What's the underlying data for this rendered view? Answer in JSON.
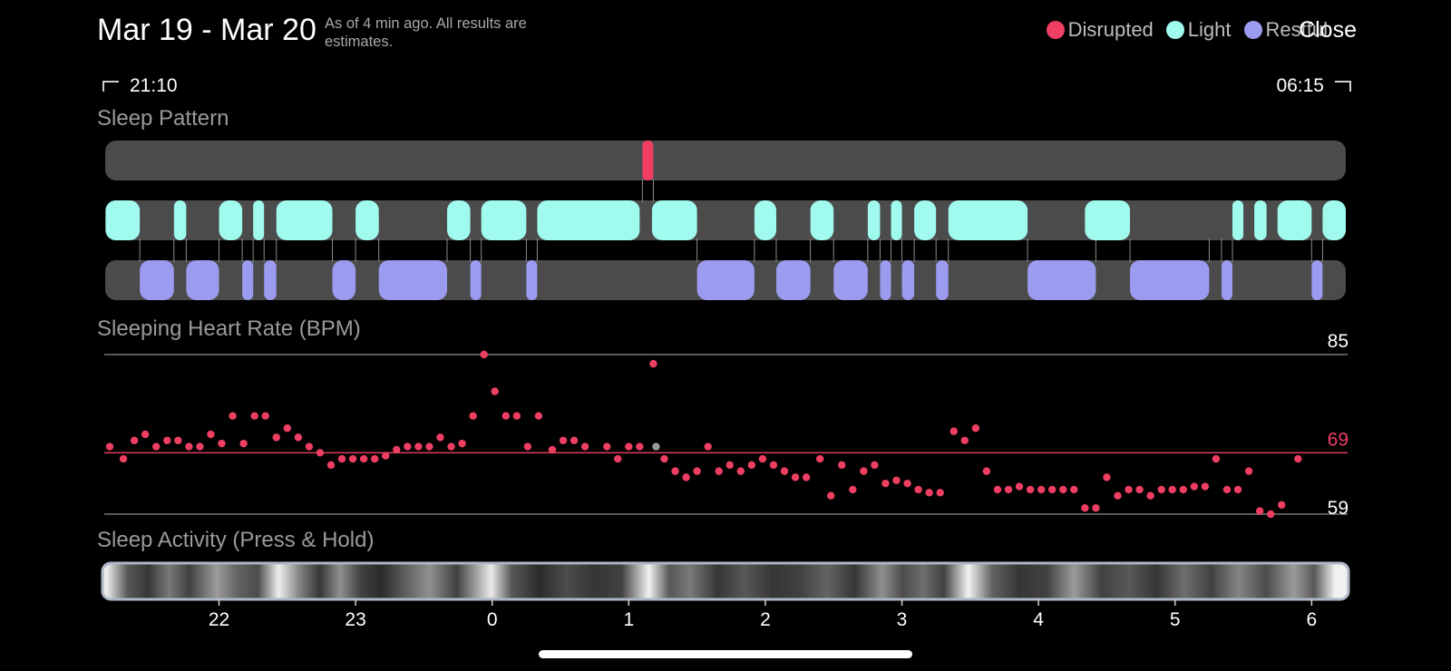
{
  "header": {
    "date_range": "Mar 19 - Mar 20",
    "status_note": "As of 4 min ago. All results are estimates.",
    "close_label": "Close"
  },
  "legend": [
    {
      "label": "Disrupted",
      "color": "#ee3f63"
    },
    {
      "label": "Light",
      "color": "#a0fbee"
    },
    {
      "label": "Restful",
      "color": "#9b9bf0"
    }
  ],
  "time_range": {
    "start": "21:10",
    "end": "06:15"
  },
  "sections": {
    "sleep_pattern": "Sleep Pattern",
    "heart_rate": "Sleeping Heart Rate (BPM)",
    "activity": "Sleep Activity (Press & Hold)"
  },
  "chart_data": [
    {
      "type": "timeline",
      "title": "Sleep Pattern",
      "x_range": [
        21.1667,
        30.25
      ],
      "lanes": [
        "Disrupted",
        "Light",
        "Restful"
      ],
      "segments": {
        "Disrupted": [
          [
            25.1,
            25.18
          ]
        ],
        "Light": [
          [
            21.17,
            21.42
          ],
          [
            21.67,
            21.76
          ],
          [
            22.0,
            22.17
          ],
          [
            22.25,
            22.33
          ],
          [
            22.42,
            22.83
          ],
          [
            23.0,
            23.17
          ],
          [
            23.67,
            23.84
          ],
          [
            23.92,
            24.25
          ],
          [
            24.33,
            25.08
          ],
          [
            25.17,
            25.5
          ],
          [
            25.92,
            26.08
          ],
          [
            26.33,
            26.5
          ],
          [
            26.75,
            26.84
          ],
          [
            26.92,
            27.0
          ],
          [
            27.09,
            27.25
          ],
          [
            27.34,
            27.92
          ],
          [
            28.34,
            28.67
          ],
          [
            29.42,
            29.5
          ],
          [
            29.58,
            29.67
          ],
          [
            29.75,
            30.0
          ],
          [
            30.08,
            30.25
          ]
        ],
        "Restful": [
          [
            21.42,
            21.67
          ],
          [
            21.76,
            22.0
          ],
          [
            22.17,
            22.25
          ],
          [
            22.33,
            22.42
          ],
          [
            22.83,
            23.0
          ],
          [
            23.17,
            23.67
          ],
          [
            23.84,
            23.92
          ],
          [
            24.25,
            24.33
          ],
          [
            25.5,
            25.92
          ],
          [
            26.08,
            26.33
          ],
          [
            26.5,
            26.75
          ],
          [
            26.84,
            26.92
          ],
          [
            27.0,
            27.09
          ],
          [
            27.25,
            27.34
          ],
          [
            27.92,
            28.42
          ],
          [
            28.67,
            29.25
          ],
          [
            29.34,
            29.42
          ],
          [
            30.0,
            30.08
          ]
        ]
      }
    },
    {
      "type": "scatter",
      "title": "Sleeping Heart Rate (BPM)",
      "x_range": [
        21.1667,
        30.25
      ],
      "ylim": [
        59,
        85
      ],
      "reference_lines": [
        85,
        69,
        59
      ],
      "points": [
        [
          21.2,
          70
        ],
        [
          21.3,
          68
        ],
        [
          21.38,
          71
        ],
        [
          21.46,
          72
        ],
        [
          21.54,
          70
        ],
        [
          21.62,
          71
        ],
        [
          21.7,
          71
        ],
        [
          21.78,
          70
        ],
        [
          21.86,
          70
        ],
        [
          21.94,
          72
        ],
        [
          22.02,
          70.5
        ],
        [
          22.1,
          75
        ],
        [
          22.18,
          70.5
        ],
        [
          22.26,
          75
        ],
        [
          22.34,
          75
        ],
        [
          22.42,
          71.5
        ],
        [
          22.5,
          73
        ],
        [
          22.58,
          71.5
        ],
        [
          22.66,
          70
        ],
        [
          22.74,
          69
        ],
        [
          22.82,
          67
        ],
        [
          22.9,
          68
        ],
        [
          22.98,
          68
        ],
        [
          23.06,
          68
        ],
        [
          23.14,
          68
        ],
        [
          23.22,
          68.5
        ],
        [
          23.3,
          69.5
        ],
        [
          23.38,
          70
        ],
        [
          23.46,
          70
        ],
        [
          23.54,
          70
        ],
        [
          23.62,
          71.5
        ],
        [
          23.7,
          70
        ],
        [
          23.78,
          70.5
        ],
        [
          23.86,
          75
        ],
        [
          23.94,
          85
        ],
        [
          24.02,
          79
        ],
        [
          24.1,
          75
        ],
        [
          24.18,
          75
        ],
        [
          24.26,
          70
        ],
        [
          24.34,
          75
        ],
        [
          24.44,
          69.5
        ],
        [
          24.52,
          71
        ],
        [
          24.6,
          71
        ],
        [
          24.68,
          70
        ],
        [
          24.84,
          70
        ],
        [
          24.92,
          68
        ],
        [
          25.0,
          70
        ],
        [
          25.08,
          70
        ],
        [
          25.18,
          83.5
        ],
        [
          25.26,
          68
        ],
        [
          25.34,
          66
        ],
        [
          25.42,
          65
        ],
        [
          25.5,
          66
        ],
        [
          25.58,
          70
        ],
        [
          25.66,
          66
        ],
        [
          25.74,
          67
        ],
        [
          25.82,
          66
        ],
        [
          25.9,
          67
        ],
        [
          25.98,
          68
        ],
        [
          26.06,
          67
        ],
        [
          26.14,
          66
        ],
        [
          26.22,
          65
        ],
        [
          26.3,
          65
        ],
        [
          26.4,
          68
        ],
        [
          26.48,
          62
        ],
        [
          26.56,
          67
        ],
        [
          26.64,
          63
        ],
        [
          26.72,
          66
        ],
        [
          26.8,
          67
        ],
        [
          26.88,
          64
        ],
        [
          26.96,
          64.5
        ],
        [
          27.04,
          64
        ],
        [
          27.12,
          63
        ],
        [
          27.2,
          62.5
        ],
        [
          27.28,
          62.5
        ],
        [
          27.38,
          72.5
        ],
        [
          27.46,
          71
        ],
        [
          27.54,
          73
        ],
        [
          27.62,
          66
        ],
        [
          27.7,
          63
        ],
        [
          27.78,
          63
        ],
        [
          27.86,
          63.5
        ],
        [
          27.94,
          63
        ],
        [
          28.02,
          63
        ],
        [
          28.1,
          63
        ],
        [
          28.18,
          63
        ],
        [
          28.26,
          63
        ],
        [
          28.34,
          60
        ],
        [
          28.42,
          60
        ],
        [
          28.5,
          65
        ],
        [
          28.58,
          62
        ],
        [
          28.66,
          63
        ],
        [
          28.74,
          63
        ],
        [
          28.82,
          62
        ],
        [
          28.9,
          63
        ],
        [
          28.98,
          63
        ],
        [
          29.06,
          63
        ],
        [
          29.14,
          63.5
        ],
        [
          29.22,
          63.5
        ],
        [
          29.3,
          68
        ],
        [
          29.38,
          63
        ],
        [
          29.46,
          63
        ],
        [
          29.54,
          66
        ],
        [
          29.62,
          59.5
        ],
        [
          29.7,
          59
        ],
        [
          29.78,
          60.5
        ],
        [
          29.9,
          68
        ]
      ],
      "highlight_point": [
        25.2,
        70
      ]
    },
    {
      "type": "heatmap",
      "title": "Sleep Activity (Press & Hold)",
      "x_range": [
        21.1667,
        30.25
      ],
      "x_ticks": [
        "22",
        "23",
        "0",
        "1",
        "2",
        "3",
        "4",
        "5",
        "6"
      ],
      "x_tick_values": [
        22,
        23,
        24,
        25,
        26,
        27,
        28,
        29,
        30
      ],
      "intensity": [
        [
          21.2,
          0.95
        ],
        [
          21.35,
          0.3
        ],
        [
          21.5,
          0.15
        ],
        [
          21.65,
          0.45
        ],
        [
          21.8,
          0.2
        ],
        [
          22.0,
          0.6
        ],
        [
          22.15,
          0.35
        ],
        [
          22.3,
          0.25
        ],
        [
          22.45,
          0.97
        ],
        [
          22.6,
          0.5
        ],
        [
          22.75,
          0.15
        ],
        [
          22.9,
          0.55
        ],
        [
          23.05,
          0.2
        ],
        [
          23.2,
          0.1
        ],
        [
          23.35,
          0.3
        ],
        [
          23.55,
          0.55
        ],
        [
          23.75,
          0.2
        ],
        [
          24.0,
          0.95
        ],
        [
          24.15,
          0.3
        ],
        [
          24.35,
          0.1
        ],
        [
          24.55,
          0.25
        ],
        [
          24.75,
          0.15
        ],
        [
          24.95,
          0.2
        ],
        [
          25.15,
          0.98
        ],
        [
          25.3,
          0.3
        ],
        [
          25.45,
          0.45
        ],
        [
          25.65,
          0.15
        ],
        [
          25.85,
          0.3
        ],
        [
          26.05,
          0.15
        ],
        [
          26.25,
          0.2
        ],
        [
          26.45,
          0.35
        ],
        [
          26.65,
          0.15
        ],
        [
          26.85,
          0.55
        ],
        [
          27.0,
          0.25
        ],
        [
          27.15,
          0.4
        ],
        [
          27.3,
          0.2
        ],
        [
          27.48,
          0.99
        ],
        [
          27.65,
          0.35
        ],
        [
          27.85,
          0.15
        ],
        [
          28.05,
          0.2
        ],
        [
          28.25,
          0.6
        ],
        [
          28.45,
          0.2
        ],
        [
          28.65,
          0.3
        ],
        [
          28.85,
          0.15
        ],
        [
          29.05,
          0.4
        ],
        [
          29.25,
          0.2
        ],
        [
          29.45,
          0.5
        ],
        [
          29.65,
          0.25
        ],
        [
          29.85,
          0.6
        ],
        [
          30.0,
          0.3
        ],
        [
          30.15,
          0.98
        ]
      ]
    }
  ]
}
